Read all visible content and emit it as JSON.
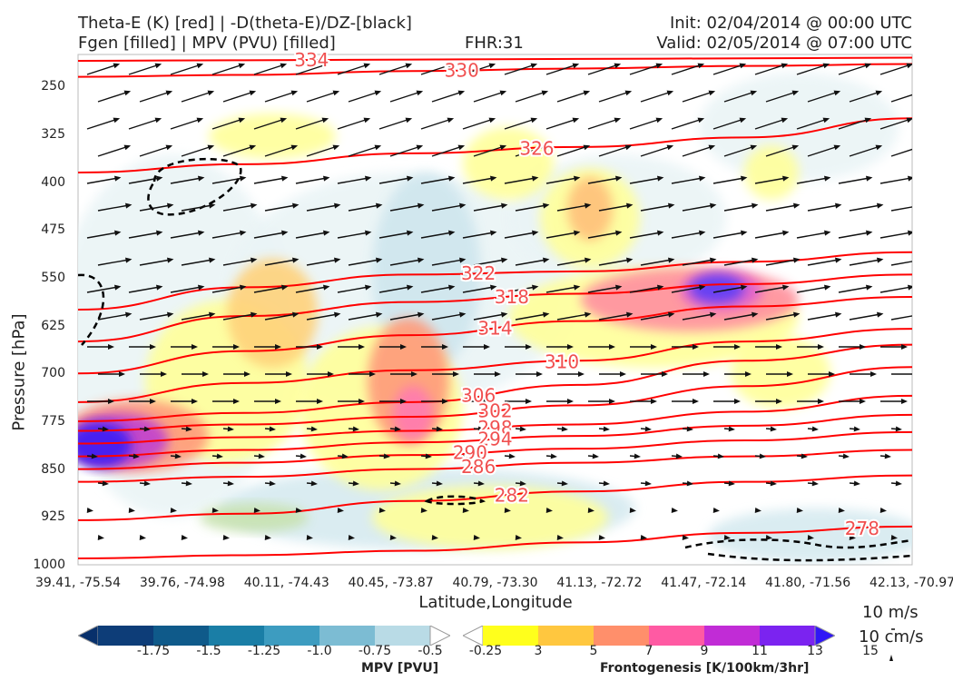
{
  "header": {
    "title_left_1": "Theta-E (K) [red] | -D(theta-E)/DZ-[black]",
    "title_left_2": "Fgen [filled] | MPV (PVU) [filled]",
    "fhr": "FHR:31",
    "init": "Init: 02/04/2014 @ 00:00 UTC",
    "valid": "Valid: 02/05/2014 @ 07:00 UTC"
  },
  "chart_data": {
    "type": "contour",
    "xlabel": "Latitude,Longitude",
    "ylabel": "Pressure [hPa]",
    "x_ticks": [
      "39.41, -75.54",
      "39.76, -74.98",
      "40.11, -74.43",
      "40.45, -73.87",
      "40.79, -73.30",
      "41.13, -72.72",
      "41.47, -72.14",
      "41.80, -71.56",
      "42.13, -70.97"
    ],
    "y_ticks": [
      "250",
      "325",
      "400",
      "475",
      "550",
      "625",
      "700",
      "775",
      "850",
      "925",
      "1000"
    ],
    "ylim": [
      1000,
      200
    ],
    "theta_e_contours": [
      {
        "label": "334",
        "y": [
          210,
          209,
          208,
          207,
          206,
          205
        ]
      },
      {
        "label": "330",
        "y": [
          235,
          232,
          226,
          222,
          218,
          215
        ]
      },
      {
        "label": "326",
        "y": [
          385,
          372,
          355,
          345,
          330,
          300
        ]
      },
      {
        "label": "322",
        "y": [
          600,
          565,
          545,
          540,
          525,
          510
        ]
      },
      {
        "label": "318",
        "y": [
          650,
          610,
          588,
          575,
          560,
          545
        ]
      },
      {
        "label": "314",
        "y": [
          700,
          665,
          640,
          618,
          595,
          580
        ]
      },
      {
        "label": "310",
        "y": [
          745,
          715,
          695,
          680,
          650,
          630
        ]
      },
      {
        "label": "306",
        "y": [
          775,
          762,
          745,
          718,
          680,
          655
        ]
      },
      {
        "label": "302",
        "y": [
          790,
          780,
          768,
          750,
          720,
          690
        ]
      },
      {
        "label": "298",
        "y": [
          810,
          800,
          790,
          780,
          760,
          735
        ]
      },
      {
        "label": "294",
        "y": [
          830,
          820,
          808,
          798,
          782,
          765
        ]
      },
      {
        "label": "290",
        "y": [
          850,
          840,
          828,
          818,
          805,
          792
        ]
      },
      {
        "label": "286",
        "y": [
          870,
          862,
          850,
          840,
          830,
          820
        ]
      },
      {
        "label": "282",
        "y": [
          930,
          920,
          900,
          885,
          870,
          860
        ]
      },
      {
        "label": "278",
        "y": [
          990,
          985,
          978,
          965,
          950,
          940
        ]
      }
    ],
    "mpv_colorbar": {
      "label": "MPV [PVU]",
      "ticks": [
        "-1.75",
        "-1.5",
        "-1.25",
        "-1.0",
        "-0.75",
        "-0.5",
        "-0.25"
      ],
      "colors": [
        "#08306b",
        "#0d3d78",
        "#0f5a8a",
        "#1a7ea6",
        "#3d9cc0",
        "#7cbcd3",
        "#b9dbe6",
        "#ffffff"
      ]
    },
    "fgen_colorbar": {
      "label": "Frontogenesis [K/100km/3hr]",
      "ticks": [
        "3",
        "5",
        "7",
        "9",
        "11",
        "13",
        "15"
      ],
      "colors": [
        "#ffffff",
        "#ffff1c",
        "#ffc73f",
        "#ff8f6b",
        "#ff5aa3",
        "#c12cd6",
        "#7b23f0",
        "#2f16f6"
      ]
    }
  },
  "reference_vectors": {
    "horizontal": "10 m/s",
    "vertical": "10 cm/s"
  }
}
